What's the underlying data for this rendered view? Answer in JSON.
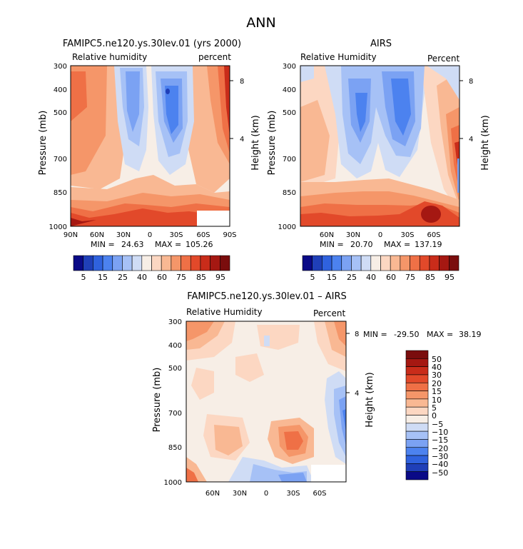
{
  "page_title": "ANN",
  "chart_data": [
    {
      "type": "heatmap",
      "title": "FAMIPC5.ne120.ys.30lev.01 (yrs 2000)",
      "left_label": "Relative humidity",
      "right_label": "percent",
      "ylabel": "Pressure (mb)",
      "y2label": "Height (km)",
      "y_ticks": [
        "300",
        "400",
        "500",
        "700",
        "850",
        "1000"
      ],
      "y_tick_values": [
        300,
        400,
        500,
        700,
        850,
        1000
      ],
      "y2_ticks": [
        "8",
        "4"
      ],
      "x_ticks": [
        "90N",
        "60N",
        "30N",
        "0",
        "30S",
        "60S",
        "90S"
      ],
      "x_tick_values": [
        90,
        60,
        30,
        0,
        -30,
        -60,
        -90
      ],
      "min_label": "MIN =",
      "min_value": "24.63",
      "max_label": "MAX =",
      "max_value": "105.26",
      "colorbar_ticks": [
        "5",
        "15",
        "25",
        "40",
        "60",
        "75",
        "85",
        "95"
      ]
    },
    {
      "type": "heatmap",
      "title": "AIRS",
      "left_label": "Relative Humidity",
      "right_label": "Percent",
      "ylabel": "Pressure (mb)",
      "y2label": "Height (km)",
      "y_ticks": [
        "300",
        "400",
        "500",
        "700",
        "850",
        "1000"
      ],
      "y_tick_values": [
        300,
        400,
        500,
        700,
        850,
        1000
      ],
      "y2_ticks": [
        "8",
        "4"
      ],
      "x_ticks": [
        "60N",
        "30N",
        "0",
        "30S",
        "60S"
      ],
      "x_tick_values": [
        60,
        30,
        0,
        -30,
        -60
      ],
      "min_label": "MIN =",
      "min_value": "20.70",
      "max_label": "MAX =",
      "max_value": "137.19",
      "colorbar_ticks": [
        "5",
        "15",
        "25",
        "40",
        "60",
        "75",
        "85",
        "95"
      ]
    },
    {
      "type": "heatmap",
      "title": "FAMIPC5.ne120.ys.30lev.01 – AIRS",
      "left_label": "Relative Humidity",
      "right_label": "Percent",
      "ylabel": "Pressure (mb)",
      "y2label": "Height (km)",
      "y_ticks": [
        "300",
        "400",
        "500",
        "700",
        "850",
        "1000"
      ],
      "y_tick_values": [
        300,
        400,
        500,
        700,
        850,
        1000
      ],
      "y2_ticks": [
        "8",
        "4"
      ],
      "x_ticks": [
        "60N",
        "30N",
        "0",
        "30S",
        "60S"
      ],
      "x_tick_values": [
        60,
        30,
        0,
        -30,
        -60
      ],
      "min_label": "MIN =",
      "min_value": "-29.50",
      "max_label": "MAX =",
      "max_value": "38.19",
      "colorbar_ticks": [
        "50",
        "40",
        "30",
        "20",
        "15",
        "10",
        "5",
        "0",
        "−5",
        "−10",
        "−15",
        "−20",
        "−30",
        "−40",
        "−50"
      ]
    }
  ],
  "colors": {
    "rh_scale": [
      "#0a0a87",
      "#1f3fb8",
      "#2f62de",
      "#4c82ef",
      "#7ba2f3",
      "#a6c1f6",
      "#cfdcf5",
      "#f7eee6",
      "#fcd7c2",
      "#f9b893",
      "#f59669",
      "#ef7046",
      "#e2492a",
      "#c92c1a",
      "#a51812",
      "#7a0d0d"
    ],
    "diff_scale": [
      "#7a0d0d",
      "#a51812",
      "#c92c1a",
      "#e2492a",
      "#ef7046",
      "#f59669",
      "#f9b893",
      "#fcd7c2",
      "#f7eee6",
      "#cfdcf5",
      "#a6c1f6",
      "#7ba2f3",
      "#4c82ef",
      "#2f62de",
      "#1f3fb8",
      "#0a0a87"
    ]
  }
}
